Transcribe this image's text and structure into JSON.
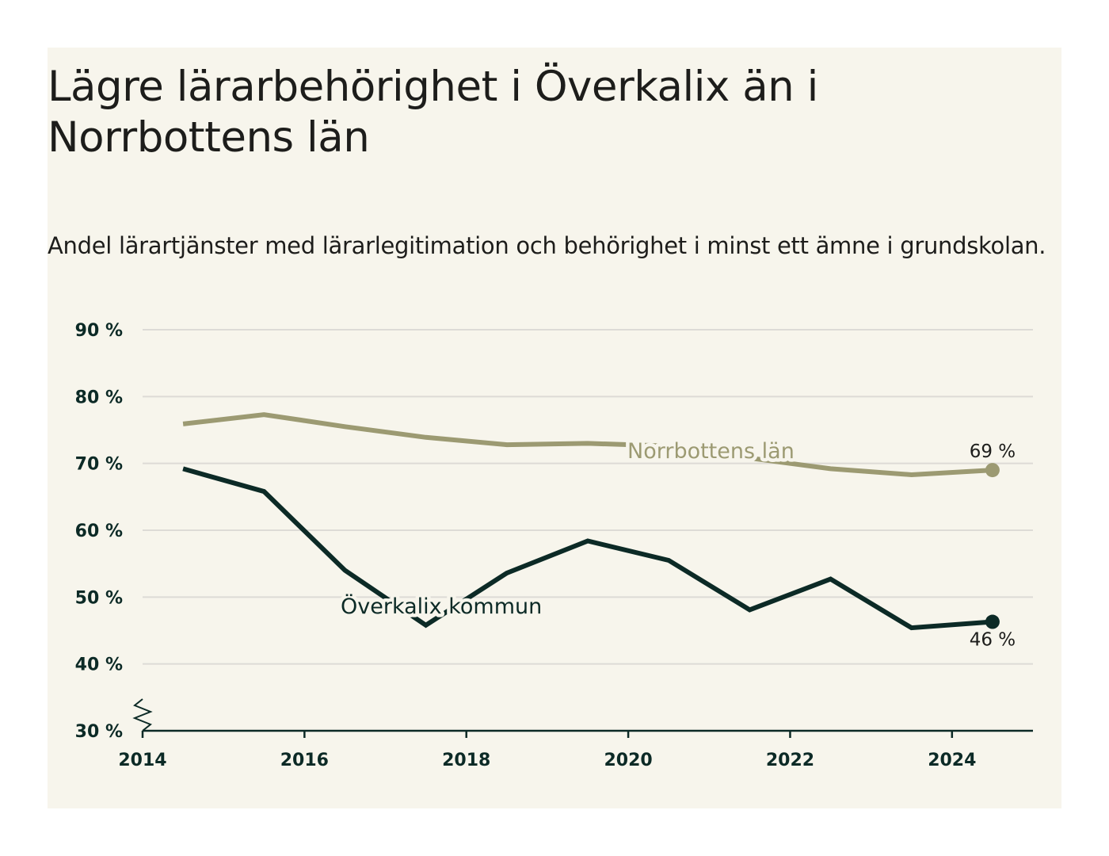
{
  "title": "Lägre lärarbehörighet i Överkalix än i Norrbottens län",
  "subtitle": "Andel lärartjänster med lärarlegitimation och behörighet i minst ett ämne i grundskolan.",
  "colors": {
    "background": "#f7f5ec",
    "overkalix": "#0c2a26",
    "norrbotten": "#9c9a72",
    "grid": "#dddbd6"
  },
  "chart_data": {
    "type": "line",
    "x": [
      2014.5,
      2015.5,
      2016.5,
      2017.5,
      2018.5,
      2019.5,
      2020.5,
      2021.5,
      2022.5,
      2023.5,
      2024.5
    ],
    "xlim": [
      2014,
      2025
    ],
    "ylim": [
      30,
      90
    ],
    "y_axis_break": true,
    "x_ticks": [
      2014,
      2016,
      2018,
      2020,
      2022,
      2024
    ],
    "x_tick_labels": [
      "2014",
      "2016",
      "2018",
      "2020",
      "2022",
      "2024"
    ],
    "y_ticks": [
      30,
      40,
      50,
      60,
      70,
      80,
      90
    ],
    "y_tick_labels": [
      "30 %",
      "40 %",
      "50 %",
      "60 %",
      "70 %",
      "80 %",
      "90 %"
    ],
    "grid": true,
    "series": [
      {
        "name": "Norrbottens län",
        "color": "#9c9a72",
        "values": [
          75.9,
          77.3,
          75.5,
          73.9,
          72.8,
          73.0,
          72.6,
          70.8,
          69.2,
          68.3,
          69.0
        ],
        "end_label": "69 %"
      },
      {
        "name": "Överkalix kommun",
        "color": "#0c2a26",
        "values": [
          69.2,
          65.8,
          54.0,
          45.8,
          53.6,
          58.4,
          55.5,
          48.1,
          52.7,
          45.4,
          46.3
        ],
        "end_label": "46 %"
      }
    ]
  }
}
